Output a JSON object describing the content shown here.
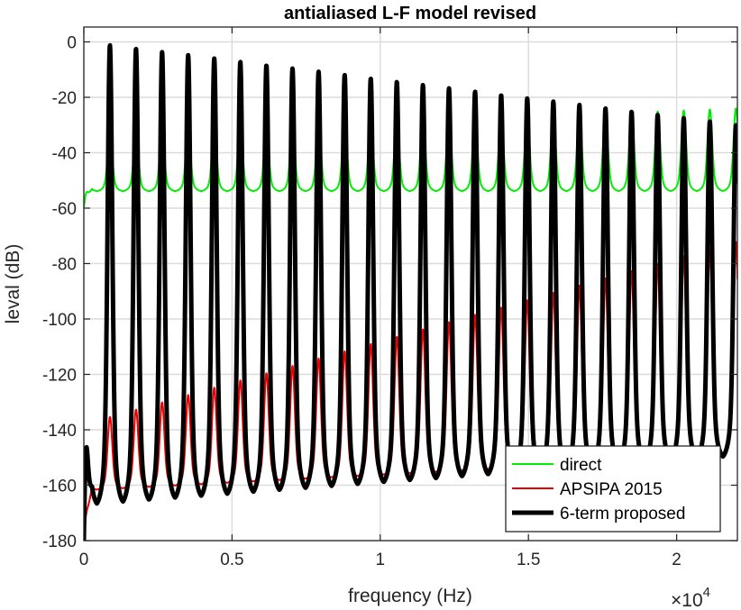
{
  "chart_data": {
    "type": "line",
    "title": "antialiased L-F model revised",
    "xlabel": "frequency (Hz)",
    "ylabel": "leval (dB)",
    "x_exponent_label": "×10",
    "x_exponent_power": "4",
    "xlim": [
      0,
      22050
    ],
    "ylim": [
      -180,
      5
    ],
    "xticks": [
      0,
      5000,
      10000,
      15000,
      20000
    ],
    "xtick_labels": [
      "0",
      "0.5",
      "1",
      "1.5",
      "2"
    ],
    "yticks": [
      0,
      -20,
      -40,
      -60,
      -80,
      -100,
      -120,
      -140,
      -160,
      -180
    ],
    "ytick_labels": [
      "0",
      "-20",
      "-40",
      "-60",
      "-80",
      "-100",
      "-120",
      "-140",
      "-160",
      "-180"
    ],
    "grid": true,
    "legend_position": "bottom-right",
    "harmonic_spacing_hz": 880,
    "series": [
      {
        "name": "direct",
        "color": "#00ee00",
        "line_width": 2,
        "peak_db_start": -33,
        "peak_db_end": -24,
        "floor_db_start": -54,
        "floor_db_end": -54,
        "first_point_db": -60
      },
      {
        "name": "APSIPA 2015",
        "color": "#ee0000",
        "line_width": 2,
        "peak_db_start": -138,
        "peak_db_end": -72,
        "floor_db_start": -162,
        "floor_db_end": -150,
        "first_point_db": -180
      },
      {
        "name": "6-term proposed",
        "color": "#000000",
        "line_width": 5,
        "peak_db_start": 0,
        "peak_db_end": -30,
        "floor_db_start": -168,
        "floor_db_end": -150,
        "first_point_db": -180
      }
    ]
  }
}
